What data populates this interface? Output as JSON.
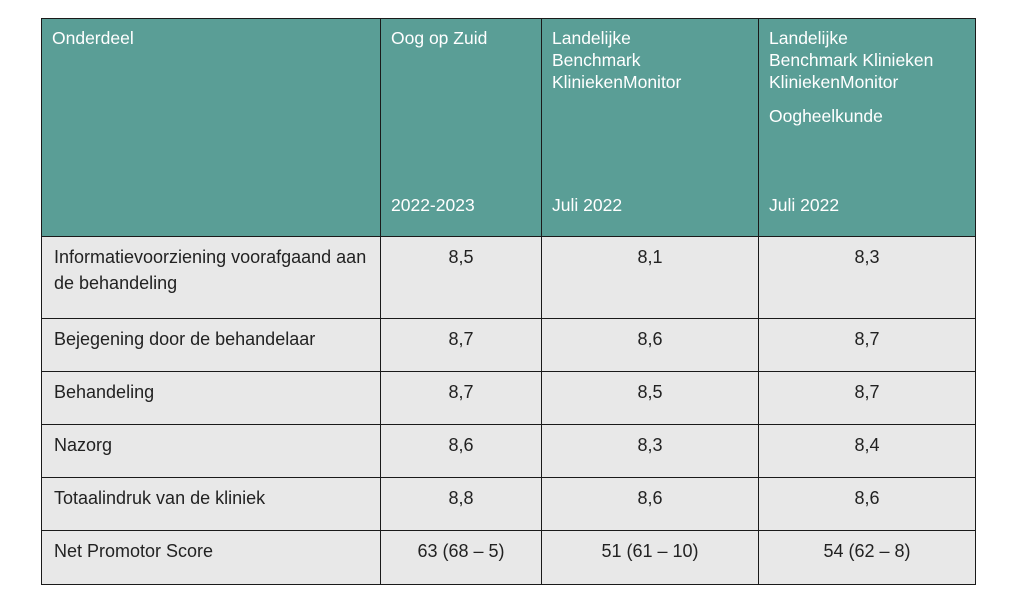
{
  "table": {
    "headers": [
      {
        "top": "Onderdeel",
        "sub": "",
        "bottom": ""
      },
      {
        "top": "Oog op Zuid",
        "sub": "",
        "bottom": "2022-2023"
      },
      {
        "top": "Landelijke\nBenchmark\nKliniekenMonitor",
        "sub": "",
        "bottom": "Juli 2022"
      },
      {
        "top": "Landelijke\nBenchmark Klinieken\nKliniekenMonitor",
        "sub": "Oogheelkunde",
        "bottom": "Juli 2022"
      }
    ],
    "rows": [
      {
        "label": "Informatievoorziening voorafgaand aan de behandeling",
        "values": [
          "8,5",
          "8,1",
          "8,3"
        ]
      },
      {
        "label": "Bejegening door de behandelaar",
        "values": [
          "8,7",
          "8,6",
          "8,7"
        ]
      },
      {
        "label": "Behandeling",
        "values": [
          "8,7",
          "8,5",
          "8,7"
        ]
      },
      {
        "label": "Nazorg",
        "values": [
          "8,6",
          "8,3",
          "8,4"
        ]
      },
      {
        "label": "Totaalindruk van de kliniek",
        "values": [
          "8,8",
          "8,6",
          "8,6"
        ]
      },
      {
        "label": "Net Promotor Score",
        "values": [
          "63 (68 – 5)",
          "51 (61 – 10)",
          "54  (62 – 8)"
        ]
      }
    ]
  },
  "colors": {
    "header_bg": "#5a9e96",
    "header_text": "#ffffff",
    "cell_bg": "#e8e8e8",
    "border": "#1a1a1a"
  }
}
